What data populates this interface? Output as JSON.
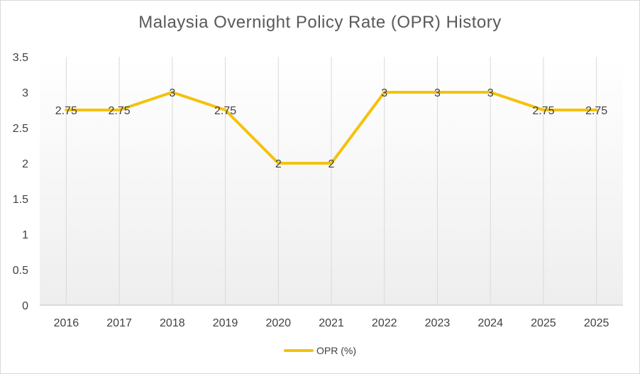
{
  "chart_data": {
    "type": "line",
    "title": "Malaysia Overnight Policy Rate (OPR) History",
    "categories": [
      "2016",
      "2017",
      "2018",
      "2019",
      "2020",
      "2021",
      "2022",
      "2023",
      "2024",
      "2025",
      "2025"
    ],
    "series": [
      {
        "name": "OPR (%)",
        "values": [
          2.75,
          2.75,
          3,
          2.75,
          2,
          2,
          3,
          3,
          3,
          2.75,
          2.75
        ],
        "color": "#F4C20D"
      }
    ],
    "ylim": [
      0,
      3.5
    ],
    "yticks": [
      "0",
      "0.5",
      "1",
      "1.5",
      "2",
      "2.5",
      "3",
      "3.5"
    ],
    "data_labels": [
      "2.75",
      "2.75",
      "3",
      "2.75",
      "2",
      "2",
      "3",
      "3",
      "3",
      "2.75",
      "2.75"
    ],
    "grid": "vertical",
    "legend": "bottom"
  }
}
